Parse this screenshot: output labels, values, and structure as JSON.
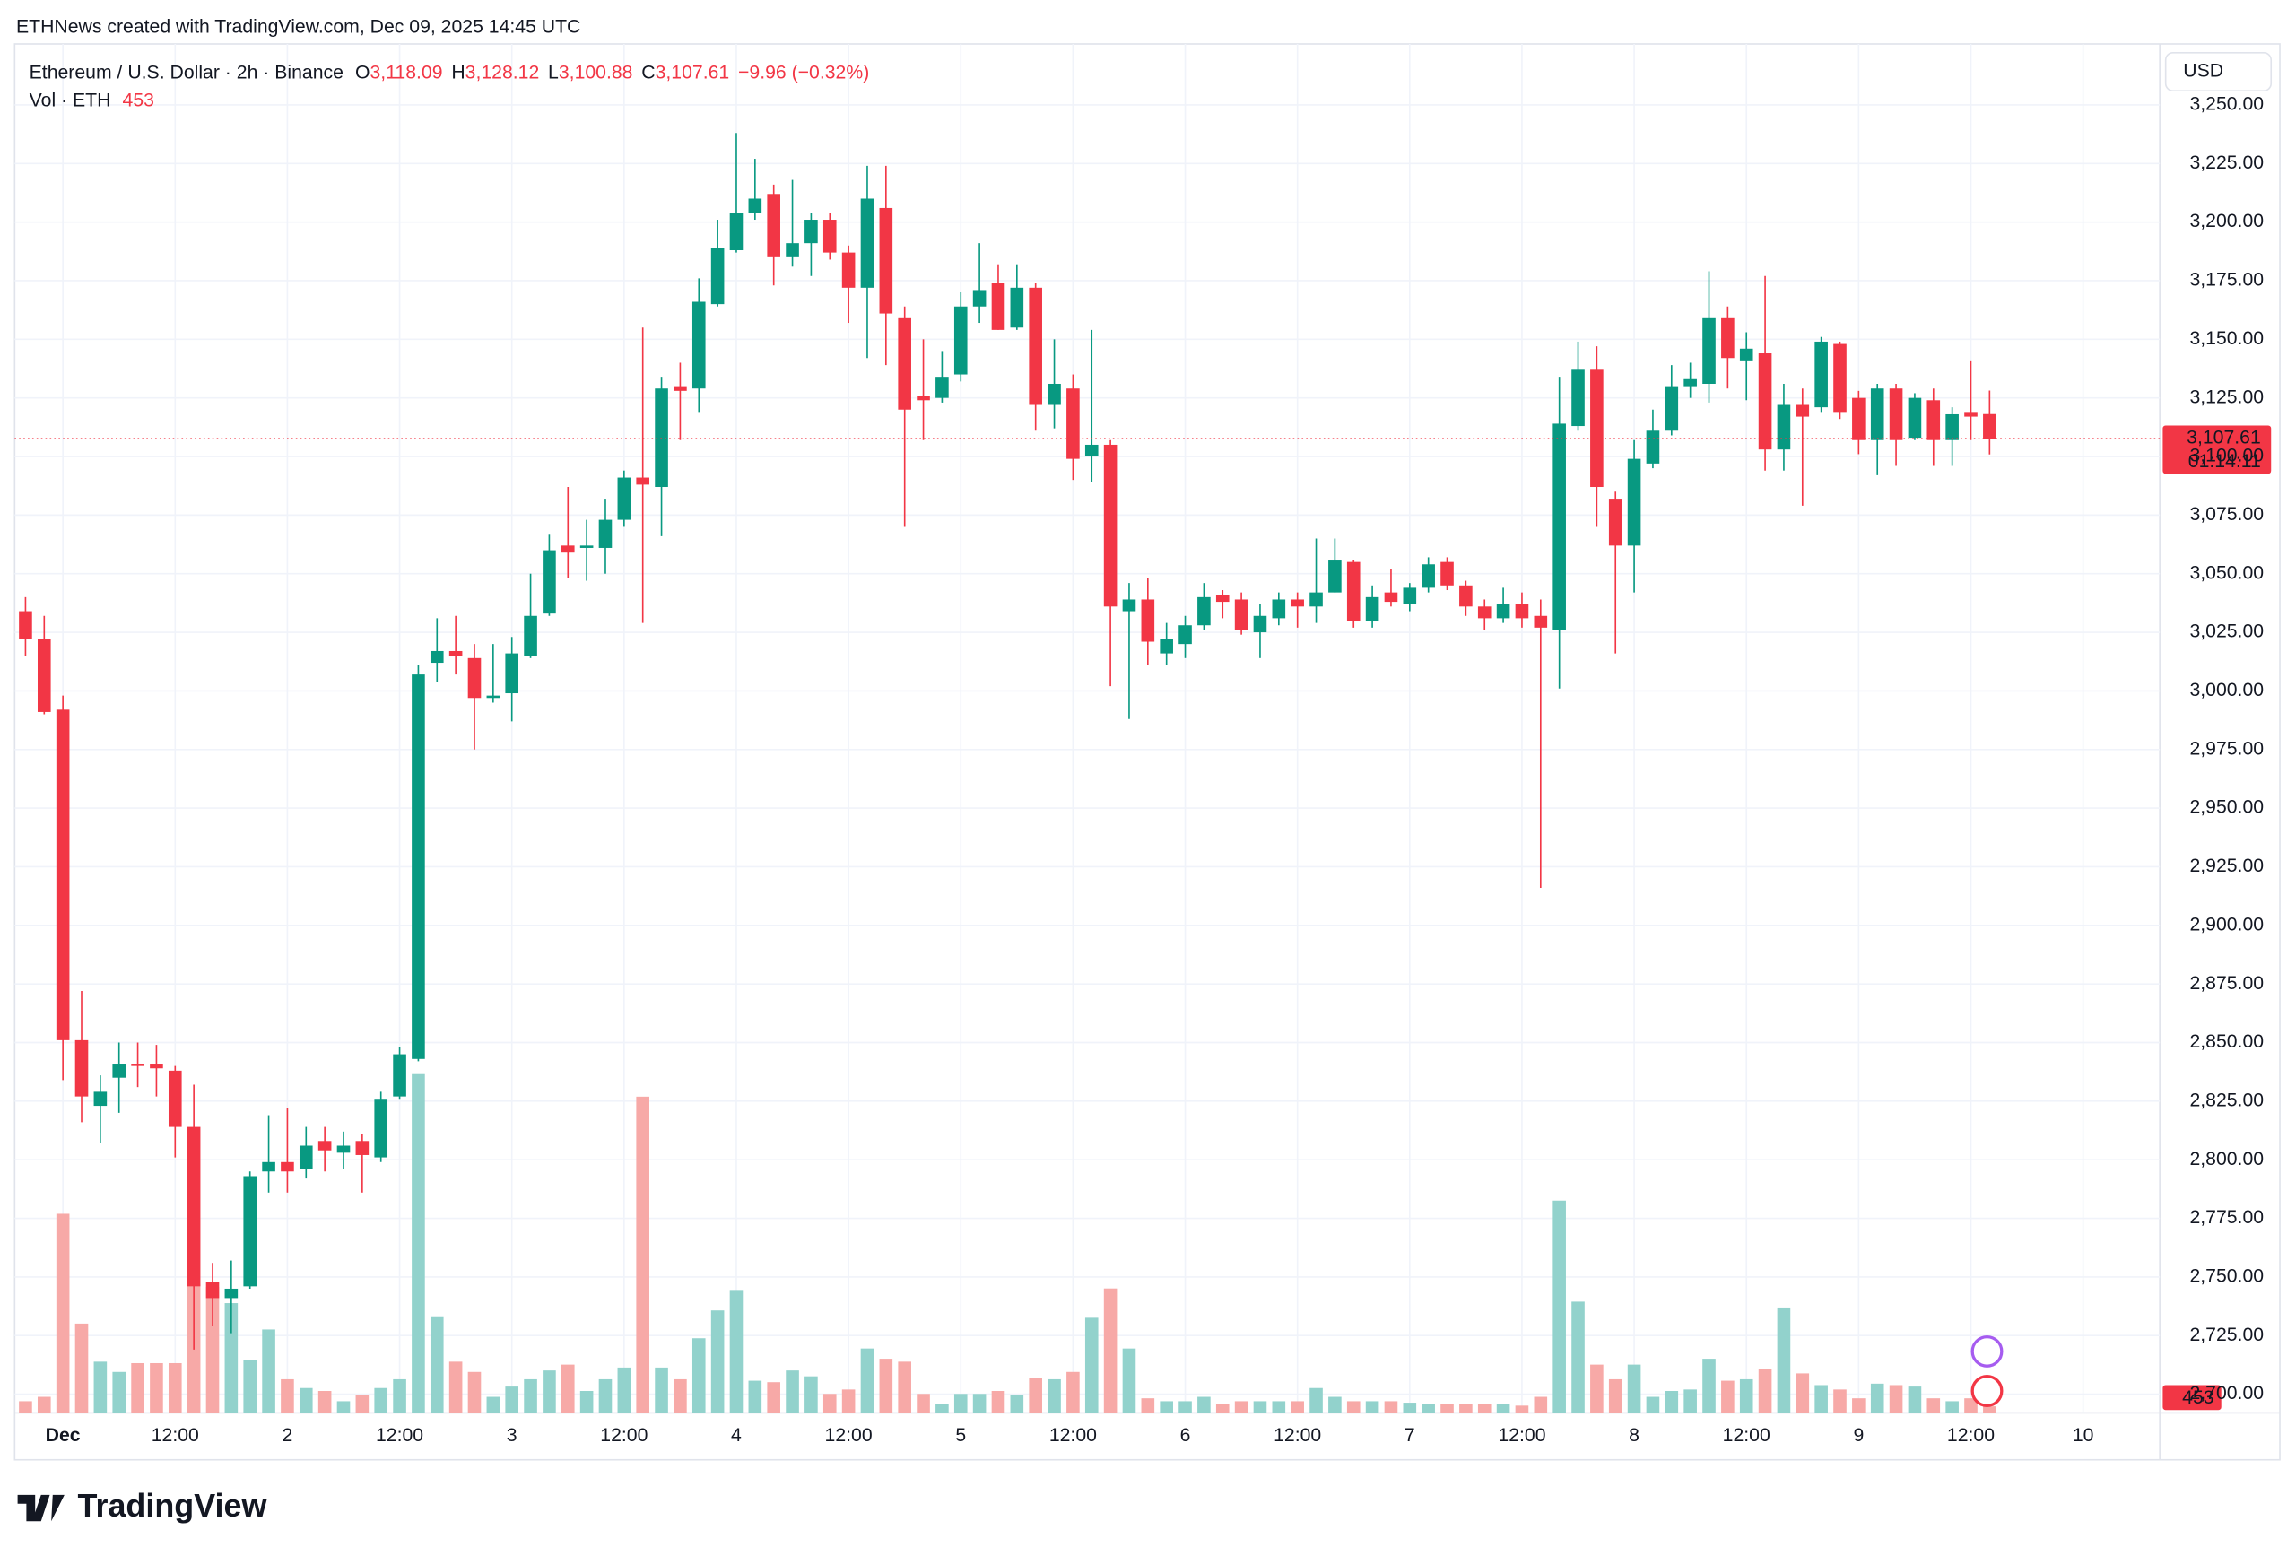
{
  "chart_data": {
    "type": "candlestick",
    "watermark": "ETHNews created with TradingView.com, Dec 09, 2025 14:45 UTC",
    "symbol": "Ethereum / U.S. Dollar · 2h · Binance",
    "ohlc": [
      {
        "key": "O",
        "value": "3,118.09"
      },
      {
        "key": "H",
        "value": "3,128.12"
      },
      {
        "key": "L",
        "value": "3,100.88"
      },
      {
        "key": "C",
        "value": "3,107.61"
      }
    ],
    "change": "−9.96 (−0.32%)",
    "volume_title": "Vol · ETH",
    "volume_label": "453",
    "currency": "USD",
    "last_price_label": "3,107.61",
    "countdown": "01:14:11",
    "brand": "TradingView",
    "up_color": "#089981",
    "down_color": "#f23645",
    "volume_up_color": "#92d2cc",
    "volume_down_color": "#f7a9a7",
    "grid": true,
    "xlim": [
      -0.58,
      114.1
    ],
    "xticks": [
      {
        "value": 2,
        "label": "Dec"
      },
      {
        "value": 8,
        "label": "12:00"
      },
      {
        "value": 14,
        "label": "2"
      },
      {
        "value": 20,
        "label": "12:00"
      },
      {
        "value": 26,
        "label": "3"
      },
      {
        "value": 32,
        "label": "12:00"
      },
      {
        "value": 38,
        "label": "4"
      },
      {
        "value": 44,
        "label": "12:00"
      },
      {
        "value": 50,
        "label": "5"
      },
      {
        "value": 56,
        "label": "12:00"
      },
      {
        "value": 62,
        "label": "6"
      },
      {
        "value": 68,
        "label": "12:00"
      },
      {
        "value": 74,
        "label": "7"
      },
      {
        "value": 80,
        "label": "12:00"
      },
      {
        "value": 86,
        "label": "8"
      },
      {
        "value": 92,
        "label": "12:00"
      },
      {
        "value": 98,
        "label": "9"
      },
      {
        "value": 104,
        "label": "12:00"
      },
      {
        "value": 110,
        "label": "10"
      }
    ],
    "ylim": [
      2692,
      3276
    ],
    "yticks": [
      {
        "value": 3250,
        "label": "3,250.00"
      },
      {
        "value": 3225,
        "label": "3,225.00"
      },
      {
        "value": 3200,
        "label": "3,200.00"
      },
      {
        "value": 3175,
        "label": "3,175.00"
      },
      {
        "value": 3150,
        "label": "3,150.00"
      },
      {
        "value": 3125,
        "label": "3,125.00"
      },
      {
        "value": 3100,
        "label": "3,100.00"
      },
      {
        "value": 3075,
        "label": "3,075.00"
      },
      {
        "value": 3050,
        "label": "3,050.00"
      },
      {
        "value": 3025,
        "label": "3,025.00"
      },
      {
        "value": 3000,
        "label": "3,000.00"
      },
      {
        "value": 2975,
        "label": "2,975.00"
      },
      {
        "value": 2950,
        "label": "2,950.00"
      },
      {
        "value": 2925,
        "label": "2,925.00"
      },
      {
        "value": 2900,
        "label": "2,900.00"
      },
      {
        "value": 2875,
        "label": "2,875.00"
      },
      {
        "value": 2850,
        "label": "2,850.00"
      },
      {
        "value": 2825,
        "label": "2,825.00"
      },
      {
        "value": 2800,
        "label": "2,800.00"
      },
      {
        "value": 2775,
        "label": "2,775.00"
      },
      {
        "value": 2750,
        "label": "2,750.00"
      },
      {
        "value": 2725,
        "label": "2,725.00"
      },
      {
        "value": 2700,
        "label": "2,700.00"
      }
    ],
    "volume_lim": [
      0,
      93500
    ],
    "open": [
      3034,
      3022,
      2992,
      2851,
      2823,
      2835,
      2841,
      2841,
      2838,
      2814,
      2748,
      2741,
      2746,
      2795,
      2799,
      2796,
      2808,
      2803,
      2808,
      2801,
      2827,
      2843,
      3012,
      3017,
      3014,
      2997,
      2999,
      3015,
      3033,
      3062,
      3061,
      3061,
      3073,
      3091,
      3087,
      3130,
      3129,
      3165,
      3188,
      3204,
      3212,
      3185,
      3191,
      3201,
      3187,
      3172,
      3206,
      3159,
      3126,
      3125,
      3135,
      3164,
      3174,
      3155,
      3172,
      3122,
      3129,
      3100,
      3105,
      3034,
      3039,
      3016,
      3020,
      3028,
      3041,
      3039,
      3025,
      3031,
      3039,
      3036,
      3042,
      3055,
      3030,
      3042,
      3037,
      3044,
      3055,
      3045,
      3036,
      3031,
      3037,
      3032,
      3026,
      3113,
      3137,
      3082,
      3062,
      3097,
      3111,
      3130,
      3131,
      3159,
      3141,
      3144,
      3103,
      3122,
      3121,
      3148,
      3125,
      3107,
      3129,
      3108,
      3124,
      3107,
      3119,
      3118.09
    ],
    "high": [
      3040,
      3032,
      2998,
      2872,
      2836,
      2850,
      2850,
      2849,
      2840,
      2832,
      2756,
      2757,
      2795,
      2819,
      2822,
      2814,
      2814,
      2812,
      2811,
      2829,
      2848,
      3011,
      3031,
      3032,
      3020,
      3020,
      3023,
      3050,
      3067,
      3087,
      3073,
      3082,
      3094,
      3155,
      3134,
      3140,
      3176,
      3201,
      3238,
      3227,
      3216,
      3218,
      3204,
      3204,
      3190,
      3224,
      3224,
      3164,
      3150,
      3145,
      3170,
      3191,
      3182,
      3182,
      3174,
      3150,
      3135,
      3154,
      3107,
      3046,
      3048,
      3029,
      3032,
      3046,
      3043,
      3042,
      3037,
      3042,
      3042,
      3065,
      3065,
      3056,
      3045,
      3052,
      3046,
      3057,
      3057,
      3047,
      3039,
      3044,
      3042,
      3039,
      3134,
      3149,
      3147,
      3085,
      3107,
      3120,
      3139,
      3140,
      3179,
      3164,
      3153,
      3177,
      3131,
      3129,
      3151,
      3149,
      3128,
      3131,
      3131,
      3127,
      3129,
      3121,
      3141,
      3128.12
    ],
    "low": [
      3015,
      2990,
      2834,
      2816,
      2807,
      2820,
      2831,
      2827,
      2801,
      2719,
      2729,
      2726,
      2745,
      2786,
      2786,
      2792,
      2795,
      2796,
      2786,
      2799,
      2826,
      2842,
      3004,
      3007,
      2975,
      2995,
      2987,
      3014,
      3032,
      3048,
      3047,
      3050,
      3070,
      3029,
      3066,
      3107,
      3119,
      3164,
      3187,
      3201,
      3173,
      3181,
      3177,
      3184,
      3157,
      3142,
      3139,
      3070,
      3107,
      3123,
      3132,
      3157,
      3154,
      3154,
      3111,
      3112,
      3090,
      3089,
      3002,
      2988,
      3011,
      3011,
      3014,
      3026,
      3031,
      3024,
      3014,
      3028,
      3027,
      3029,
      3042,
      3027,
      3027,
      3036,
      3034,
      3042,
      3043,
      3032,
      3026,
      3029,
      3027,
      2916,
      3001,
      3111,
      3070,
      3016,
      3042,
      3095,
      3109,
      3125,
      3123,
      3129,
      3124,
      3094,
      3094,
      3079,
      3119,
      3116,
      3101,
      3092,
      3096,
      3107,
      3096,
      3096,
      3107,
      3100.88
    ],
    "close": [
      3022,
      2991,
      2851,
      2827,
      2829,
      2841,
      2840,
      2839,
      2814,
      2746,
      2741,
      2745,
      2793,
      2799,
      2795,
      2806,
      2804,
      2806,
      2802,
      2826,
      2845,
      3007,
      3017,
      3015,
      2997,
      2998,
      3016,
      3032,
      3060,
      3059,
      3062,
      3073,
      3091,
      3088,
      3129,
      3128,
      3166,
      3189,
      3204,
      3210,
      3185,
      3191,
      3201,
      3187,
      3172,
      3210,
      3161,
      3120,
      3124,
      3134,
      3164,
      3171,
      3154,
      3172,
      3122,
      3131,
      3099,
      3105,
      3036,
      3039,
      3021,
      3022,
      3028,
      3040,
      3038,
      3026,
      3032,
      3039,
      3036,
      3042,
      3056,
      3030,
      3040,
      3038,
      3044,
      3054,
      3045,
      3036,
      3031,
      3037,
      3031,
      3027,
      3114,
      3137,
      3087,
      3062,
      3099,
      3111,
      3130,
      3133,
      3159,
      3142,
      3146,
      3103,
      3122,
      3117,
      3149,
      3119,
      3107,
      3129,
      3107,
      3125,
      3107,
      3118,
      3117,
      3107.61
    ],
    "volume": [
      800,
      1100,
      13600,
      6100,
      3500,
      2800,
      3400,
      3400,
      3400,
      8800,
      8600,
      7500,
      3600,
      5700,
      2300,
      1700,
      1500,
      800,
      1200,
      1700,
      2300,
      23200,
      6600,
      3500,
      2800,
      1100,
      1800,
      2300,
      2900,
      3300,
      1500,
      2300,
      3100,
      21600,
      3100,
      2300,
      5100,
      7000,
      8400,
      2200,
      2100,
      2900,
      2500,
      1300,
      1600,
      4400,
      3700,
      3500,
      1300,
      600,
      1300,
      1300,
      1500,
      1200,
      2400,
      2300,
      2800,
      6500,
      8500,
      4400,
      1000,
      800,
      800,
      1100,
      600,
      800,
      800,
      800,
      800,
      1700,
      1100,
      800,
      800,
      800,
      700,
      600,
      600,
      600,
      600,
      600,
      500,
      1100,
      14500,
      7600,
      3300,
      2300,
      3300,
      1100,
      1500,
      1600,
      3700,
      2200,
      2300,
      3000,
      7200,
      2700,
      1900,
      1600,
      1000,
      2000,
      1900,
      1800,
      1000,
      800,
      1000,
      453
    ]
  }
}
